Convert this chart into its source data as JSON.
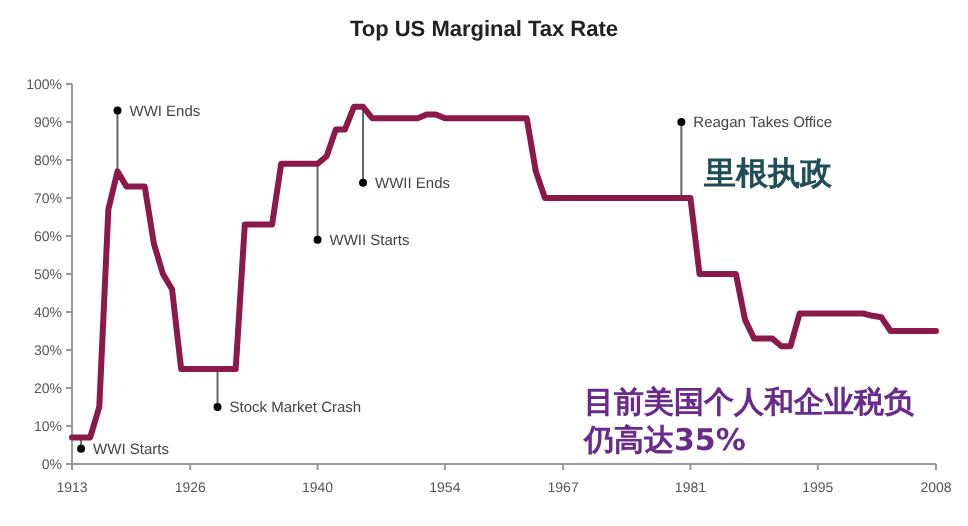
{
  "chart_data": {
    "type": "line",
    "title": "Top US Marginal Tax Rate",
    "x": [
      1913,
      1914,
      1915,
      1916,
      1917,
      1918,
      1919,
      1920,
      1921,
      1922,
      1923,
      1924,
      1925,
      1926,
      1927,
      1928,
      1929,
      1930,
      1931,
      1932,
      1933,
      1934,
      1935,
      1936,
      1937,
      1938,
      1939,
      1940,
      1941,
      1942,
      1943,
      1944,
      1945,
      1946,
      1947,
      1948,
      1949,
      1950,
      1951,
      1952,
      1953,
      1954,
      1955,
      1956,
      1957,
      1958,
      1959,
      1960,
      1961,
      1962,
      1963,
      1964,
      1965,
      1966,
      1967,
      1968,
      1969,
      1970,
      1971,
      1972,
      1973,
      1974,
      1975,
      1976,
      1977,
      1978,
      1979,
      1980,
      1981,
      1982,
      1983,
      1984,
      1985,
      1986,
      1987,
      1988,
      1989,
      1990,
      1991,
      1992,
      1993,
      1994,
      1995,
      1996,
      1997,
      1998,
      1999,
      2000,
      2001,
      2002,
      2003,
      2004,
      2005,
      2006,
      2007,
      2008
    ],
    "series": [
      {
        "color": "#8b1a4a",
        "values": [
          7,
          7,
          7,
          15,
          67,
          77,
          73,
          73,
          73,
          58,
          50,
          46,
          25,
          25,
          25,
          25,
          25,
          25,
          25,
          63,
          63,
          63,
          63,
          79,
          79,
          79,
          79,
          79,
          81,
          88,
          88,
          94,
          94,
          91,
          91,
          91,
          91,
          91,
          91,
          92,
          92,
          91,
          91,
          91,
          91,
          91,
          91,
          91,
          91,
          91,
          91,
          77,
          70,
          70,
          70,
          70,
          70,
          70,
          70,
          70,
          70,
          70,
          70,
          70,
          70,
          70,
          70,
          70,
          70,
          50,
          50,
          50,
          50,
          50,
          38,
          33,
          33,
          33,
          31,
          31,
          39.6,
          39.6,
          39.6,
          39.6,
          39.6,
          39.6,
          39.6,
          39.6,
          39,
          38.6,
          35,
          35,
          35,
          35,
          35,
          35
        ]
      }
    ],
    "xlim": [
      1913,
      2008
    ],
    "xticks": [
      1913,
      1926,
      1940,
      1954,
      1967,
      1981,
      1995,
      2008
    ],
    "ylim": [
      0,
      100
    ],
    "yticks": [
      {
        "value": 0,
        "label": "0%"
      },
      {
        "value": 10,
        "label": "10%"
      },
      {
        "value": 20,
        "label": "20%"
      },
      {
        "value": 30,
        "label": "30%"
      },
      {
        "value": 40,
        "label": "40%"
      },
      {
        "value": 50,
        "label": "50%"
      },
      {
        "value": 60,
        "label": "60%"
      },
      {
        "value": 70,
        "label": "70%"
      },
      {
        "value": 80,
        "label": "80%"
      },
      {
        "value": 90,
        "label": "90%"
      },
      {
        "value": 100,
        "label": "100%"
      }
    ],
    "grid": false,
    "marker": "none",
    "line_style": "solid",
    "annotations": [
      {
        "text": "WWI Starts",
        "x": 1914,
        "y": 4
      },
      {
        "text": "WWI Ends",
        "x": 1918,
        "y": 93
      },
      {
        "text": "Stock Market Crash",
        "x": 1929,
        "y": 15
      },
      {
        "text": "WWII Starts",
        "x": 1940,
        "y": 59
      },
      {
        "text": "WWII Ends",
        "x": 1945,
        "y": 74
      },
      {
        "text": "Reagan Takes Office",
        "x": 1980,
        "y": 90
      },
      "里根执政",
      "目前美国个人和企业税负仍高达35%"
    ]
  }
}
